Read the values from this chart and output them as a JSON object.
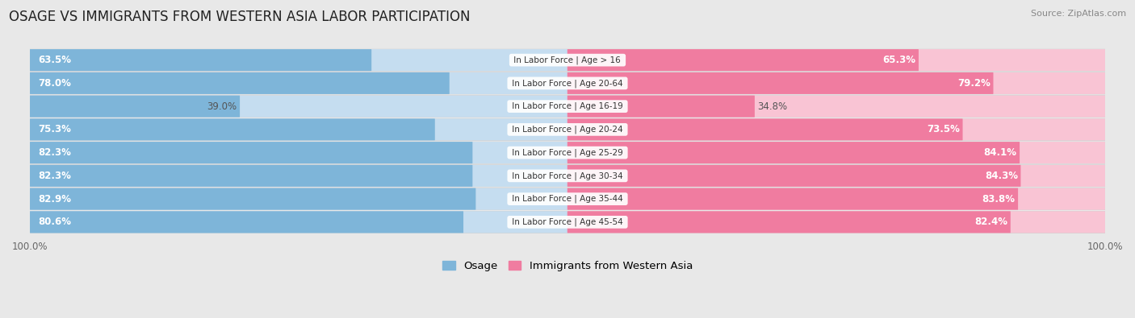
{
  "title": "OSAGE VS IMMIGRANTS FROM WESTERN ASIA LABOR PARTICIPATION",
  "source": "Source: ZipAtlas.com",
  "categories": [
    "In Labor Force | Age > 16",
    "In Labor Force | Age 20-64",
    "In Labor Force | Age 16-19",
    "In Labor Force | Age 20-24",
    "In Labor Force | Age 25-29",
    "In Labor Force | Age 30-34",
    "In Labor Force | Age 35-44",
    "In Labor Force | Age 45-54"
  ],
  "osage_values": [
    63.5,
    78.0,
    39.0,
    75.3,
    82.3,
    82.3,
    82.9,
    80.6
  ],
  "immigrants_values": [
    65.3,
    79.2,
    34.8,
    73.5,
    84.1,
    84.3,
    83.8,
    82.4
  ],
  "osage_color": "#7eb5d9",
  "osage_color_light": "#c5ddf0",
  "immigrants_color": "#f07ca0",
  "immigrants_color_light": "#f9c4d4",
  "background_color": "#e8e8e8",
  "row_bg_even": "#f5f5f5",
  "row_bg_odd": "#e2e2e2",
  "max_value": 100.0,
  "title_fontsize": 12,
  "label_fontsize": 8.5,
  "tick_fontsize": 8.5,
  "legend_fontsize": 9.5
}
